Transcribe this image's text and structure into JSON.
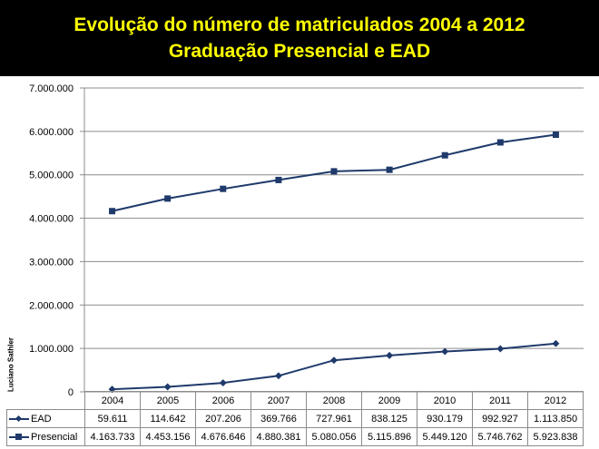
{
  "title": {
    "line1": "Evolução do número de matriculados 2004 a 2012",
    "line2": "Graduação Presencial e EAD"
  },
  "credit": "Luciano Sathler",
  "colors": {
    "title": "#ffff00",
    "series": "#1f3a6b",
    "grid": "#8c8c8c"
  },
  "chart_data": {
    "type": "line",
    "title": "Evolução do número de matriculados 2004 a 2012 Graduação Presencial e EAD",
    "categories": [
      "2004",
      "2005",
      "2006",
      "2007",
      "2008",
      "2009",
      "2010",
      "2011",
      "2012"
    ],
    "ylim": [
      0,
      7000000
    ],
    "yticks": [
      "0",
      "1.000.000",
      "2.000.000",
      "3.000.000",
      "4.000.000",
      "5.000.000",
      "6.000.000",
      "7.000.000"
    ],
    "grid": true,
    "legend": "data-table",
    "series": [
      {
        "name": "EAD",
        "marker": "diamond",
        "values": [
          59611,
          114642,
          207206,
          369766,
          727961,
          838125,
          930179,
          992927,
          1113850
        ],
        "labels": [
          "59.611",
          "114.642",
          "207.206",
          "369.766",
          "727.961",
          "838.125",
          "930.179",
          "992.927",
          "1.113.850"
        ]
      },
      {
        "name": "Presencial",
        "marker": "square",
        "values": [
          4163733,
          4453156,
          4676646,
          4880381,
          5080056,
          5115896,
          5449120,
          5746762,
          5923838
        ],
        "labels": [
          "4.163.733",
          "4.453.156",
          "4.676.646",
          "4.880.381",
          "5.080.056",
          "5.115.896",
          "5.449.120",
          "5.746.762",
          "5.923.838"
        ]
      }
    ]
  }
}
